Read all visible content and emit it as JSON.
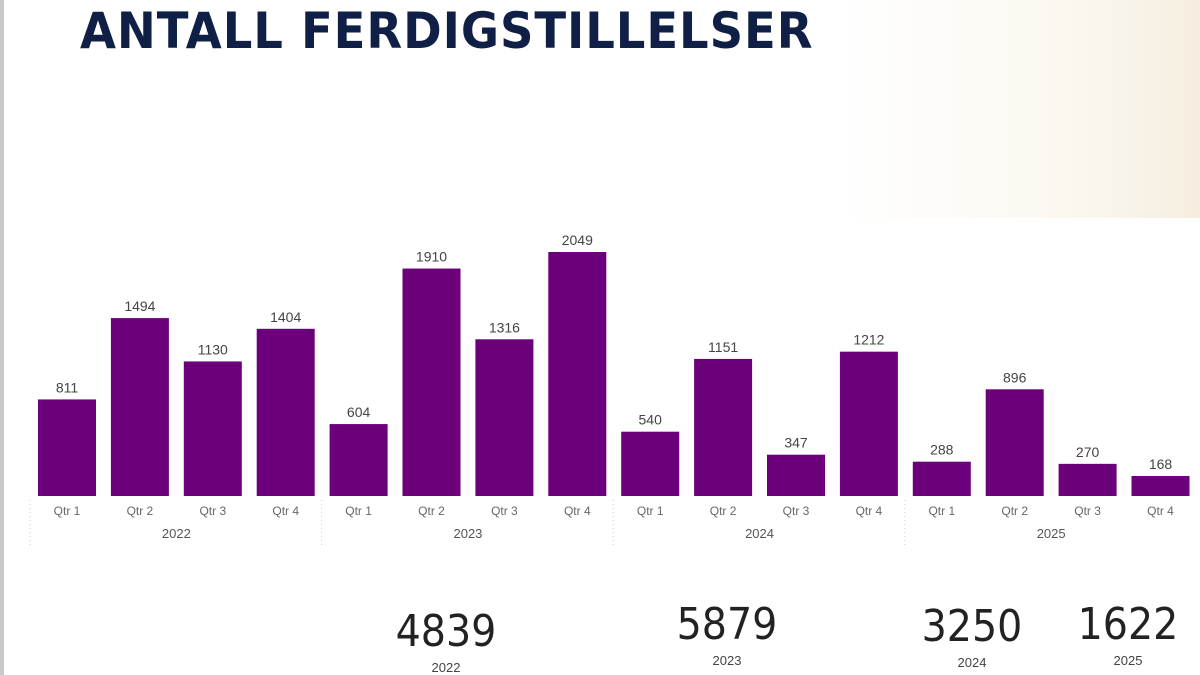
{
  "title": "ANTALL FERDIGSTILLELSER",
  "colors": {
    "bar": "#6b007a",
    "title": "#0f1f45"
  },
  "chart_data": {
    "type": "bar",
    "title": "ANTALL FERDIGSTILLELSER",
    "categories": [
      "Qtr 1",
      "Qtr 2",
      "Qtr 3",
      "Qtr 4",
      "Qtr 1",
      "Qtr 2",
      "Qtr 3",
      "Qtr 4",
      "Qtr 1",
      "Qtr 2",
      "Qtr 3",
      "Qtr 4",
      "Qtr 1",
      "Qtr 2",
      "Qtr 3",
      "Qtr 4"
    ],
    "groups": [
      "2022",
      "2023",
      "2024",
      "2025"
    ],
    "values": [
      811,
      1494,
      1130,
      1404,
      604,
      1910,
      1316,
      2049,
      540,
      1151,
      347,
      1212,
      288,
      896,
      270,
      168
    ],
    "ylim": [
      0,
      2049
    ],
    "grid": false
  },
  "totals": [
    {
      "value": "4839",
      "year": "2022"
    },
    {
      "value": "5879",
      "year": "2023"
    },
    {
      "value": "3250",
      "year": "2024"
    },
    {
      "value": "1622",
      "year": "2025"
    }
  ]
}
